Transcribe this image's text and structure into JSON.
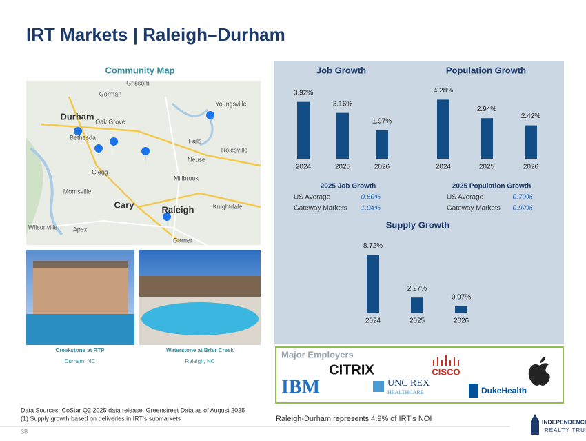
{
  "title": "IRT Markets | Raleigh–Durham",
  "map": {
    "title": "Community Map",
    "labels": [
      "Grissom",
      "Gorman",
      "Durham",
      "Oak Grove",
      "Youngsville",
      "Bethesda",
      "Falls",
      "Rolesville",
      "Neuse",
      "Clegg",
      "Millbrook",
      "Morrisville",
      "Cary",
      "Raleigh",
      "Knightdale",
      "Apex",
      "Garner",
      "Wilsonville"
    ]
  },
  "photos": [
    {
      "name": "Creekstone at RTP",
      "location": "Durham, NC"
    },
    {
      "name": "Waterstone at Brier Creek",
      "location": "Raleigh, NC"
    }
  ],
  "chart_data": [
    {
      "type": "bar",
      "title": "Job Growth",
      "categories": [
        "2024",
        "2025",
        "2026"
      ],
      "values": [
        3.92,
        3.16,
        1.97
      ],
      "value_labels": [
        "3.92%",
        "3.16%",
        "1.97%"
      ],
      "color": "#134d86"
    },
    {
      "type": "bar",
      "title": "Population Growth",
      "categories": [
        "2024",
        "2025",
        "2026"
      ],
      "values": [
        4.28,
        2.94,
        2.42
      ],
      "value_labels": [
        "4.28%",
        "2.94%",
        "2.42%"
      ],
      "color": "#134d86"
    },
    {
      "type": "bar",
      "title": "Supply Growth",
      "categories": [
        "2024",
        "2025",
        "2026"
      ],
      "values": [
        8.72,
        2.27,
        0.97
      ],
      "value_labels": [
        "8.72%",
        "2.27%",
        "0.97%"
      ],
      "color": "#134d86"
    }
  ],
  "stats": [
    {
      "title": "2025 Job Growth",
      "rows": [
        [
          "US Average",
          "0.60%"
        ],
        [
          "Gateway Markets",
          "1.04%"
        ]
      ]
    },
    {
      "title": "2025 Population Growth",
      "rows": [
        [
          "US Average",
          "0.70%"
        ],
        [
          "Gateway Markets",
          "0.92%"
        ]
      ]
    }
  ],
  "employers": {
    "title": "Major Employers",
    "logos": [
      "CITRIX",
      "CISCO",
      "IBM",
      "UNC REX",
      "HEALTHCARE",
      "DukeHealth"
    ]
  },
  "footer": {
    "sources": "Data Sources: CoStar Q2 2025 data release. Greenstreet Data as of August 2025",
    "note": "(1)  Supply growth based on deliveries in IRT’s submarkets",
    "noi": "Raleigh-Durham represents 4.9% of IRT’s NOI",
    "page": "38",
    "brand": "INDEPENDENCE",
    "brand2": "REALTY TRUST"
  }
}
